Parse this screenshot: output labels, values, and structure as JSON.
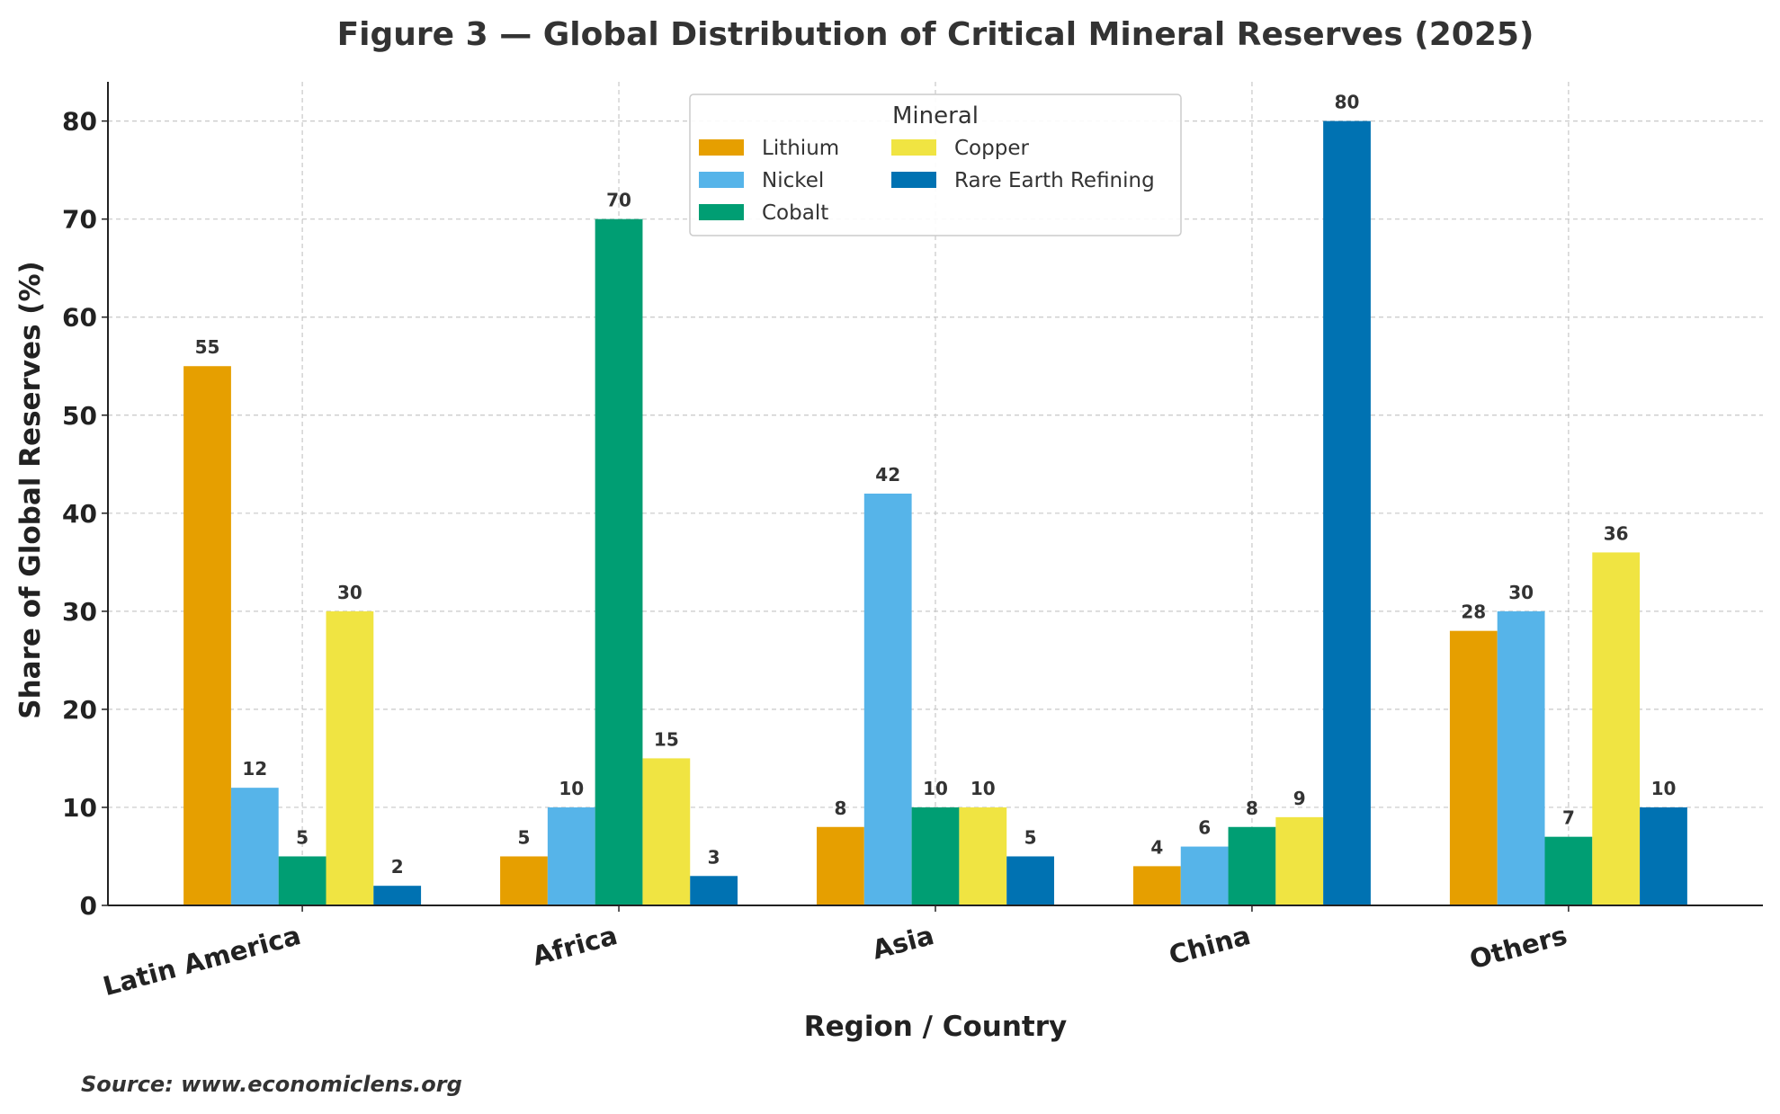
{
  "chart_data": {
    "type": "bar",
    "title": "Figure 3 — Global Distribution of Critical Mineral Reserves (2025)",
    "xlabel": "Region / Country",
    "ylabel": "Share of Global Reserves (%)",
    "categories": [
      "Latin America",
      "Africa",
      "Asia",
      "China",
      "Others"
    ],
    "series": [
      {
        "name": "Lithium",
        "color": "#E69F00",
        "values": [
          55,
          5,
          8,
          4,
          28
        ]
      },
      {
        "name": "Nickel",
        "color": "#56B4E9",
        "values": [
          12,
          10,
          42,
          6,
          30
        ]
      },
      {
        "name": "Cobalt",
        "color": "#009E73",
        "values": [
          5,
          70,
          10,
          8,
          7
        ]
      },
      {
        "name": "Copper",
        "color": "#F0E442",
        "values": [
          30,
          15,
          10,
          9,
          36
        ]
      },
      {
        "name": "Rare Earth Refining",
        "color": "#0072B2",
        "values": [
          2,
          3,
          5,
          80,
          10
        ]
      }
    ],
    "ylim": [
      0,
      84
    ],
    "yticks": [
      0,
      10,
      20,
      30,
      40,
      50,
      60,
      70,
      80
    ],
    "grid": true,
    "legend": {
      "title": "Mineral",
      "placement": "top-center",
      "columns": 2
    },
    "source": "Source: www.economiclens.org"
  }
}
